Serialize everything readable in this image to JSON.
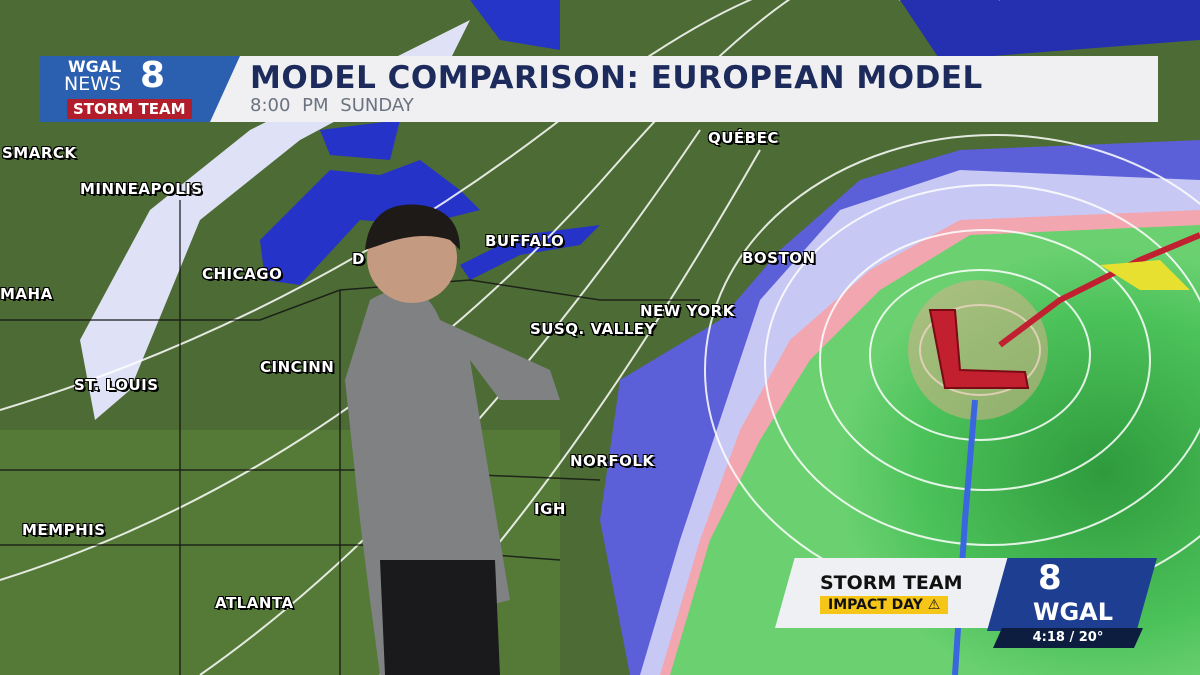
{
  "header": {
    "logo": {
      "line1": "WGAL",
      "line2": "NEWS",
      "channel": "8",
      "team": "STORM TEAM"
    },
    "title": "MODEL COMPARISON: EUROPEAN MODEL",
    "time": "8:00 PM",
    "day": "SUNDAY"
  },
  "map": {
    "cities": [
      "SMARCK",
      "MINNEAPOLIS",
      "CHICAGO",
      "D",
      "BUFFALO",
      "QUÉBEC",
      "BOSTON",
      "NEW YORK",
      "SUSQ. VALLEY",
      "CINCINN",
      "ST. LOUIS",
      "MAHA",
      "NORFOLK",
      "IGH",
      "MEMPHIS",
      "ATLANTA"
    ],
    "low_pressure_label": "L",
    "colors": {
      "land": "#4a6a32",
      "lakes": "#2533c8",
      "snow": "#d8dcf5",
      "rain": "#3fb04a",
      "mix": "#f2a6b0",
      "cold_front": "#3a66e0",
      "warm_front": "#c02030"
    }
  },
  "bug": {
    "storm_team": "STORM TEAM",
    "impact_day": "IMPACT DAY",
    "channel": "8",
    "station": "WGAL",
    "time_temp": "4:18 / 20°"
  }
}
